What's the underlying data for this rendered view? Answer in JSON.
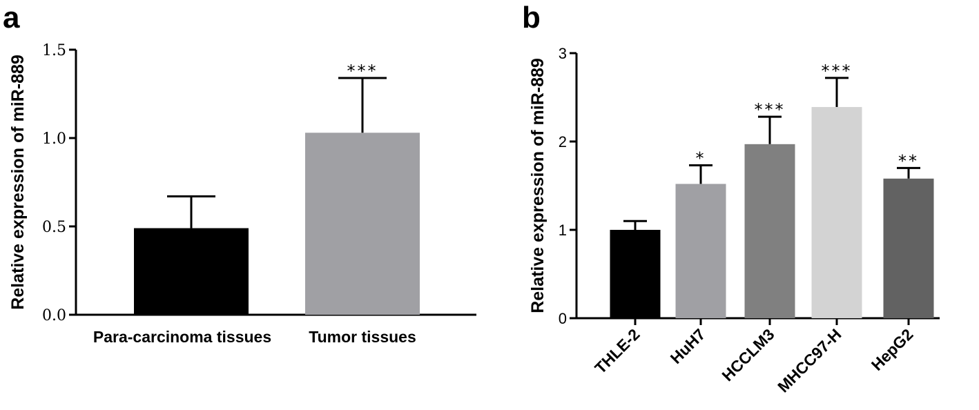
{
  "panels": [
    {
      "letter": "a",
      "chart_data": {
        "type": "bar",
        "ylabel": "Relative expression of miR-889",
        "ylim": [
          0,
          1.5
        ],
        "yticks": [
          "0.0",
          "0.5",
          "1.0",
          "1.5"
        ],
        "categories": [
          "Para-carcinoma tissues",
          "Tumor tissues"
        ],
        "values": [
          0.49,
          1.03
        ],
        "errors": [
          0.18,
          0.31
        ],
        "significance": [
          "",
          "***"
        ],
        "colors": [
          "#000000",
          "#a0a0a4"
        ]
      }
    },
    {
      "letter": "b",
      "chart_data": {
        "type": "bar",
        "ylabel": "Relative expression of miR-889",
        "ylim": [
          0,
          3
        ],
        "yticks": [
          "0",
          "1",
          "2",
          "3"
        ],
        "categories": [
          "THLE-2",
          "HuH7",
          "HCCLM3",
          "MHCC97-H",
          "HepG2"
        ],
        "values": [
          1.0,
          1.52,
          1.97,
          2.39,
          1.58
        ],
        "errors": [
          0.1,
          0.21,
          0.31,
          0.33,
          0.12
        ],
        "significance": [
          "",
          "*",
          "***",
          "***",
          "**"
        ],
        "colors": [
          "#000000",
          "#a0a0a4",
          "#808080",
          "#d3d3d3",
          "#626262"
        ]
      }
    }
  ]
}
